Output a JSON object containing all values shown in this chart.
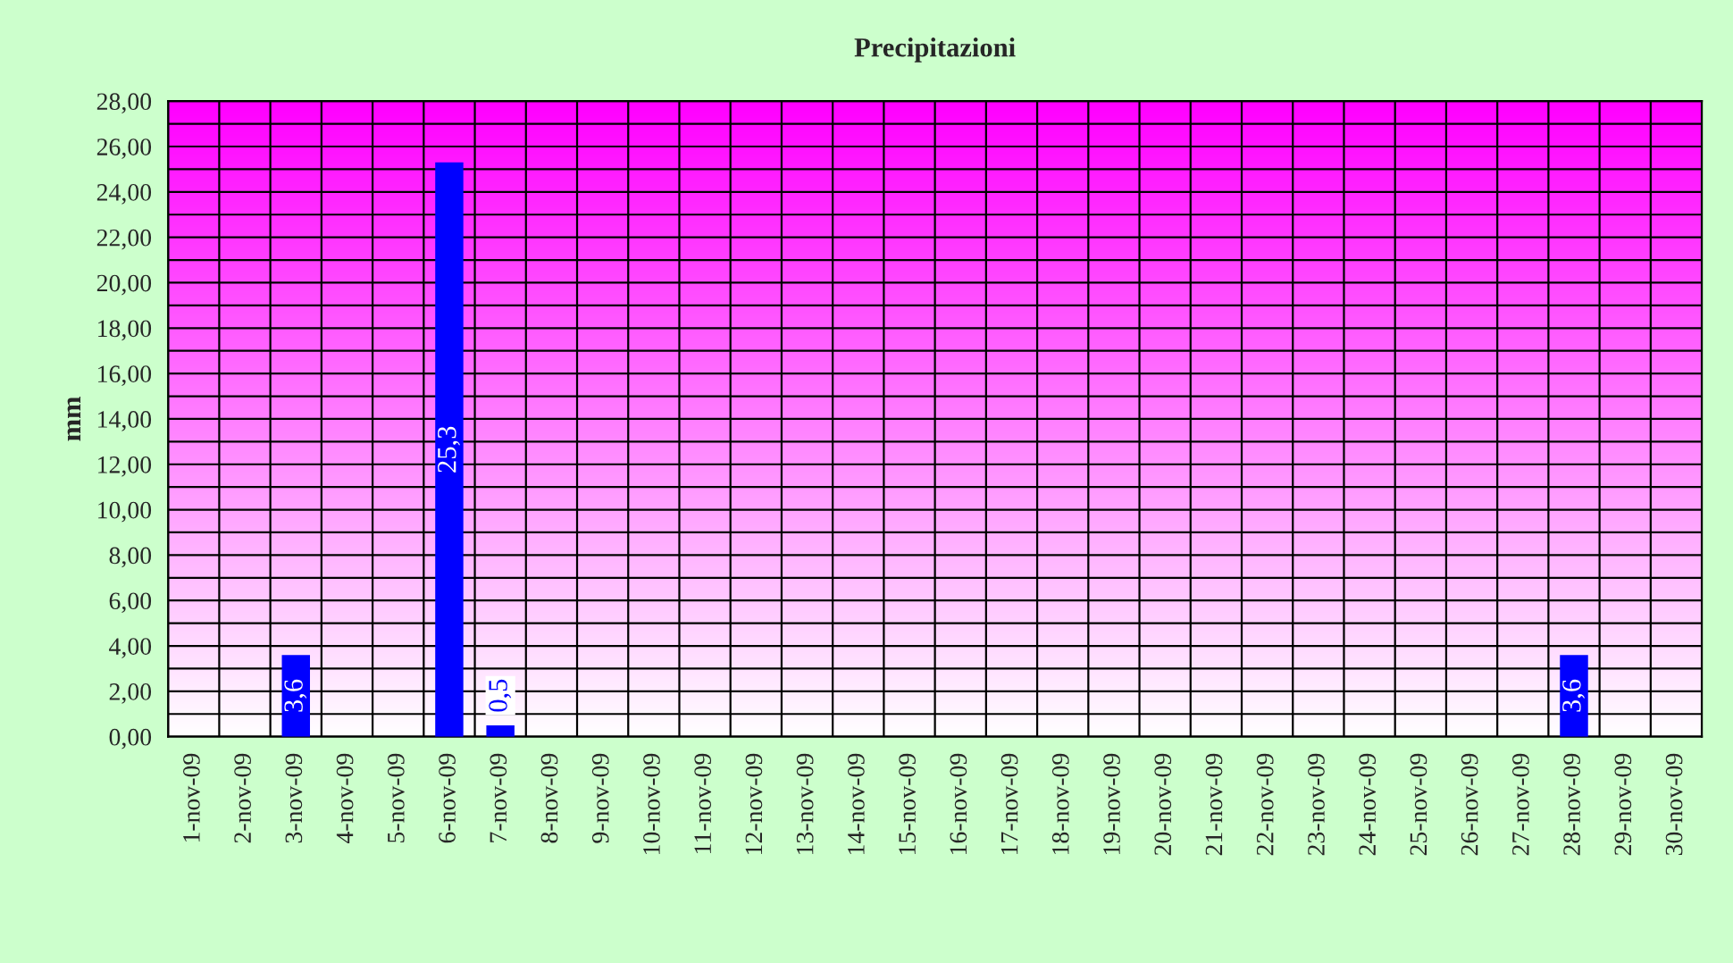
{
  "chart_data": {
    "type": "bar",
    "title": "Precipitazioni",
    "ylabel": "mm",
    "categories": [
      "1-nov-09",
      "2-nov-09",
      "3-nov-09",
      "4-nov-09",
      "5-nov-09",
      "6-nov-09",
      "7-nov-09",
      "8-nov-09",
      "9-nov-09",
      "10-nov-09",
      "11-nov-09",
      "12-nov-09",
      "13-nov-09",
      "14-nov-09",
      "15-nov-09",
      "16-nov-09",
      "17-nov-09",
      "18-nov-09",
      "19-nov-09",
      "20-nov-09",
      "21-nov-09",
      "22-nov-09",
      "23-nov-09",
      "24-nov-09",
      "25-nov-09",
      "26-nov-09",
      "27-nov-09",
      "28-nov-09",
      "29-nov-09",
      "30-nov-09"
    ],
    "values": [
      0,
      0,
      3.6,
      0,
      0,
      25.3,
      0.5,
      0,
      0,
      0,
      0,
      0,
      0,
      0,
      0,
      0,
      0,
      0,
      0,
      0,
      0,
      0,
      0,
      0,
      0,
      0,
      0,
      3.6,
      0,
      0
    ],
    "value_labels": [
      null,
      null,
      "3,6",
      null,
      null,
      "25,3",
      "0,5",
      null,
      null,
      null,
      null,
      null,
      null,
      null,
      null,
      null,
      null,
      null,
      null,
      null,
      null,
      null,
      null,
      null,
      null,
      null,
      null,
      "3,6",
      null,
      null
    ],
    "color": "#0000ff",
    "ylim": [
      0,
      28
    ],
    "yticks": [
      {
        "value": 0,
        "label": "0,00"
      },
      {
        "value": 1,
        "label": null
      },
      {
        "value": 2,
        "label": "2,00"
      },
      {
        "value": 3,
        "label": null
      },
      {
        "value": 4,
        "label": "4,00"
      },
      {
        "value": 5,
        "label": null
      },
      {
        "value": 6,
        "label": "6,00"
      },
      {
        "value": 7,
        "label": null
      },
      {
        "value": 8,
        "label": "8,00"
      },
      {
        "value": 9,
        "label": null
      },
      {
        "value": 10,
        "label": "10,00"
      },
      {
        "value": 11,
        "label": null
      },
      {
        "value": 12,
        "label": "12,00"
      },
      {
        "value": 13,
        "label": null
      },
      {
        "value": 14,
        "label": "14,00"
      },
      {
        "value": 15,
        "label": null
      },
      {
        "value": 16,
        "label": "16,00"
      },
      {
        "value": 17,
        "label": null
      },
      {
        "value": 18,
        "label": "18,00"
      },
      {
        "value": 19,
        "label": null
      },
      {
        "value": 20,
        "label": "20,00"
      },
      {
        "value": 21,
        "label": null
      },
      {
        "value": 22,
        "label": "22,00"
      },
      {
        "value": 23,
        "label": null
      },
      {
        "value": 24,
        "label": "24,00"
      },
      {
        "value": 25,
        "label": null
      },
      {
        "value": 26,
        "label": "26,00"
      },
      {
        "value": 27,
        "label": null
      },
      {
        "value": 28,
        "label": "28,00"
      }
    ],
    "grid": true
  }
}
